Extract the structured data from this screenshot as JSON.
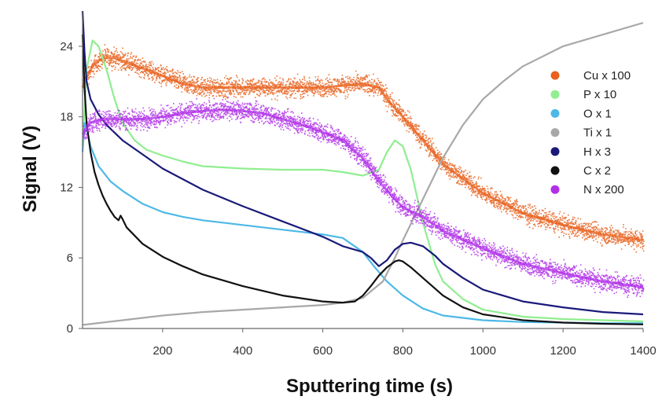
{
  "chart_data": {
    "type": "line",
    "xlabel": "Sputtering time (s)",
    "ylabel": "Signal (V)",
    "xlim": [
      0,
      1400
    ],
    "ylim": [
      0,
      27
    ],
    "xticks": [
      200,
      400,
      600,
      800,
      1000,
      1200,
      1400
    ],
    "yticks": [
      0,
      6,
      12,
      18,
      24
    ],
    "grid": false,
    "legend_position": "right",
    "series": [
      {
        "name": "Cu  x 100",
        "color": "#E8601C",
        "noisy": true,
        "x": [
          0,
          10,
          30,
          50,
          80,
          120,
          160,
          200,
          250,
          300,
          400,
          500,
          600,
          700,
          740,
          760,
          800,
          850,
          900,
          1000,
          1100,
          1200,
          1300,
          1400
        ],
        "y": [
          20.5,
          21.5,
          22.5,
          23.0,
          23.0,
          22.5,
          22.0,
          21.5,
          20.8,
          20.5,
          20.5,
          20.5,
          20.5,
          20.8,
          20.5,
          19.5,
          18.0,
          16.0,
          14.0,
          11.5,
          9.8,
          8.8,
          8.0,
          7.5
        ]
      },
      {
        "name": "P  x 10",
        "color": "#90EE90",
        "noisy": false,
        "x": [
          0,
          10,
          25,
          40,
          60,
          80,
          100,
          130,
          160,
          200,
          250,
          300,
          400,
          500,
          600,
          650,
          700,
          740,
          760,
          780,
          800,
          820,
          850,
          880,
          900,
          950,
          1000,
          1100,
          1200,
          1300,
          1400
        ],
        "y": [
          15.5,
          22.0,
          24.5,
          24.0,
          22.0,
          19.5,
          17.5,
          16.0,
          15.2,
          14.7,
          14.2,
          13.8,
          13.6,
          13.5,
          13.5,
          13.3,
          13.0,
          13.5,
          15.0,
          16.0,
          15.5,
          13.5,
          9.0,
          5.5,
          4.0,
          2.5,
          1.6,
          1.0,
          0.8,
          0.7,
          0.6
        ]
      },
      {
        "name": "O  x 1",
        "color": "#4DB8E8",
        "noisy": false,
        "x": [
          0,
          5,
          10,
          20,
          40,
          70,
          100,
          150,
          200,
          250,
          300,
          400,
          500,
          600,
          650,
          700,
          730,
          760,
          800,
          850,
          900,
          1000,
          1100,
          1200,
          1300,
          1400
        ],
        "y": [
          15.0,
          17.5,
          17.0,
          15.5,
          13.8,
          12.5,
          11.7,
          10.6,
          9.9,
          9.5,
          9.2,
          8.8,
          8.4,
          8.0,
          7.7,
          6.5,
          5.2,
          4.0,
          2.8,
          1.7,
          1.1,
          0.7,
          0.55,
          0.5,
          0.45,
          0.45
        ]
      },
      {
        "name": "Ti  x 1",
        "color": "#A8A8A8",
        "noisy": false,
        "x": [
          0,
          100,
          200,
          300,
          400,
          500,
          600,
          650,
          700,
          750,
          780,
          800,
          850,
          900,
          950,
          1000,
          1050,
          1100,
          1200,
          1300,
          1400
        ],
        "y": [
          0.3,
          0.7,
          1.1,
          1.4,
          1.6,
          1.8,
          2.0,
          2.2,
          2.6,
          4.0,
          6.0,
          7.5,
          11.0,
          14.5,
          17.3,
          19.5,
          21.0,
          22.3,
          24.0,
          25.0,
          26.0
        ]
      },
      {
        "name": "H  x 3",
        "color": "#1A1A7A",
        "noisy": false,
        "x": [
          0,
          5,
          10,
          20,
          40,
          60,
          100,
          150,
          200,
          300,
          400,
          500,
          600,
          650,
          700,
          720,
          740,
          760,
          780,
          800,
          820,
          850,
          880,
          900,
          950,
          1000,
          1100,
          1200,
          1300,
          1400
        ],
        "y": [
          27.0,
          23.5,
          21.0,
          19.5,
          18.2,
          17.3,
          16.0,
          14.8,
          13.6,
          11.8,
          10.4,
          9.1,
          7.8,
          7.0,
          6.5,
          6.0,
          5.3,
          5.8,
          6.7,
          7.2,
          7.3,
          7.0,
          6.2,
          5.5,
          4.3,
          3.3,
          2.3,
          1.8,
          1.4,
          1.2
        ]
      },
      {
        "name": "C  x 2",
        "color": "#111111",
        "noisy": false,
        "x": [
          0,
          5,
          10,
          20,
          30,
          40,
          50,
          60,
          70,
          80,
          90,
          95,
          100,
          110,
          150,
          200,
          250,
          300,
          400,
          500,
          600,
          650,
          680,
          700,
          720,
          740,
          760,
          780,
          790,
          800,
          820,
          850,
          880,
          900,
          950,
          1000,
          1100,
          1200,
          1300,
          1400
        ],
        "y": [
          25.0,
          20.5,
          17.5,
          15.0,
          13.3,
          12.2,
          11.3,
          10.6,
          10.0,
          9.5,
          9.2,
          9.6,
          9.3,
          8.6,
          7.2,
          6.1,
          5.3,
          4.6,
          3.6,
          2.8,
          2.3,
          2.2,
          2.3,
          2.8,
          3.6,
          4.5,
          5.2,
          5.7,
          5.8,
          5.7,
          5.2,
          4.3,
          3.4,
          2.8,
          1.8,
          1.2,
          0.7,
          0.5,
          0.4,
          0.35
        ]
      },
      {
        "name": "N  x 200",
        "color": "#B030E8",
        "noisy": true,
        "x": [
          0,
          20,
          50,
          100,
          150,
          200,
          250,
          300,
          350,
          400,
          450,
          500,
          550,
          600,
          650,
          700,
          740,
          780,
          800,
          850,
          900,
          1000,
          1100,
          1200,
          1300,
          1400
        ],
        "y": [
          16.5,
          17.5,
          17.8,
          17.8,
          17.8,
          18.0,
          18.3,
          18.5,
          18.6,
          18.5,
          18.3,
          17.8,
          17.3,
          16.7,
          16.0,
          14.5,
          12.5,
          11.0,
          10.3,
          9.5,
          8.3,
          6.8,
          5.5,
          4.7,
          4.0,
          3.5
        ]
      }
    ]
  }
}
